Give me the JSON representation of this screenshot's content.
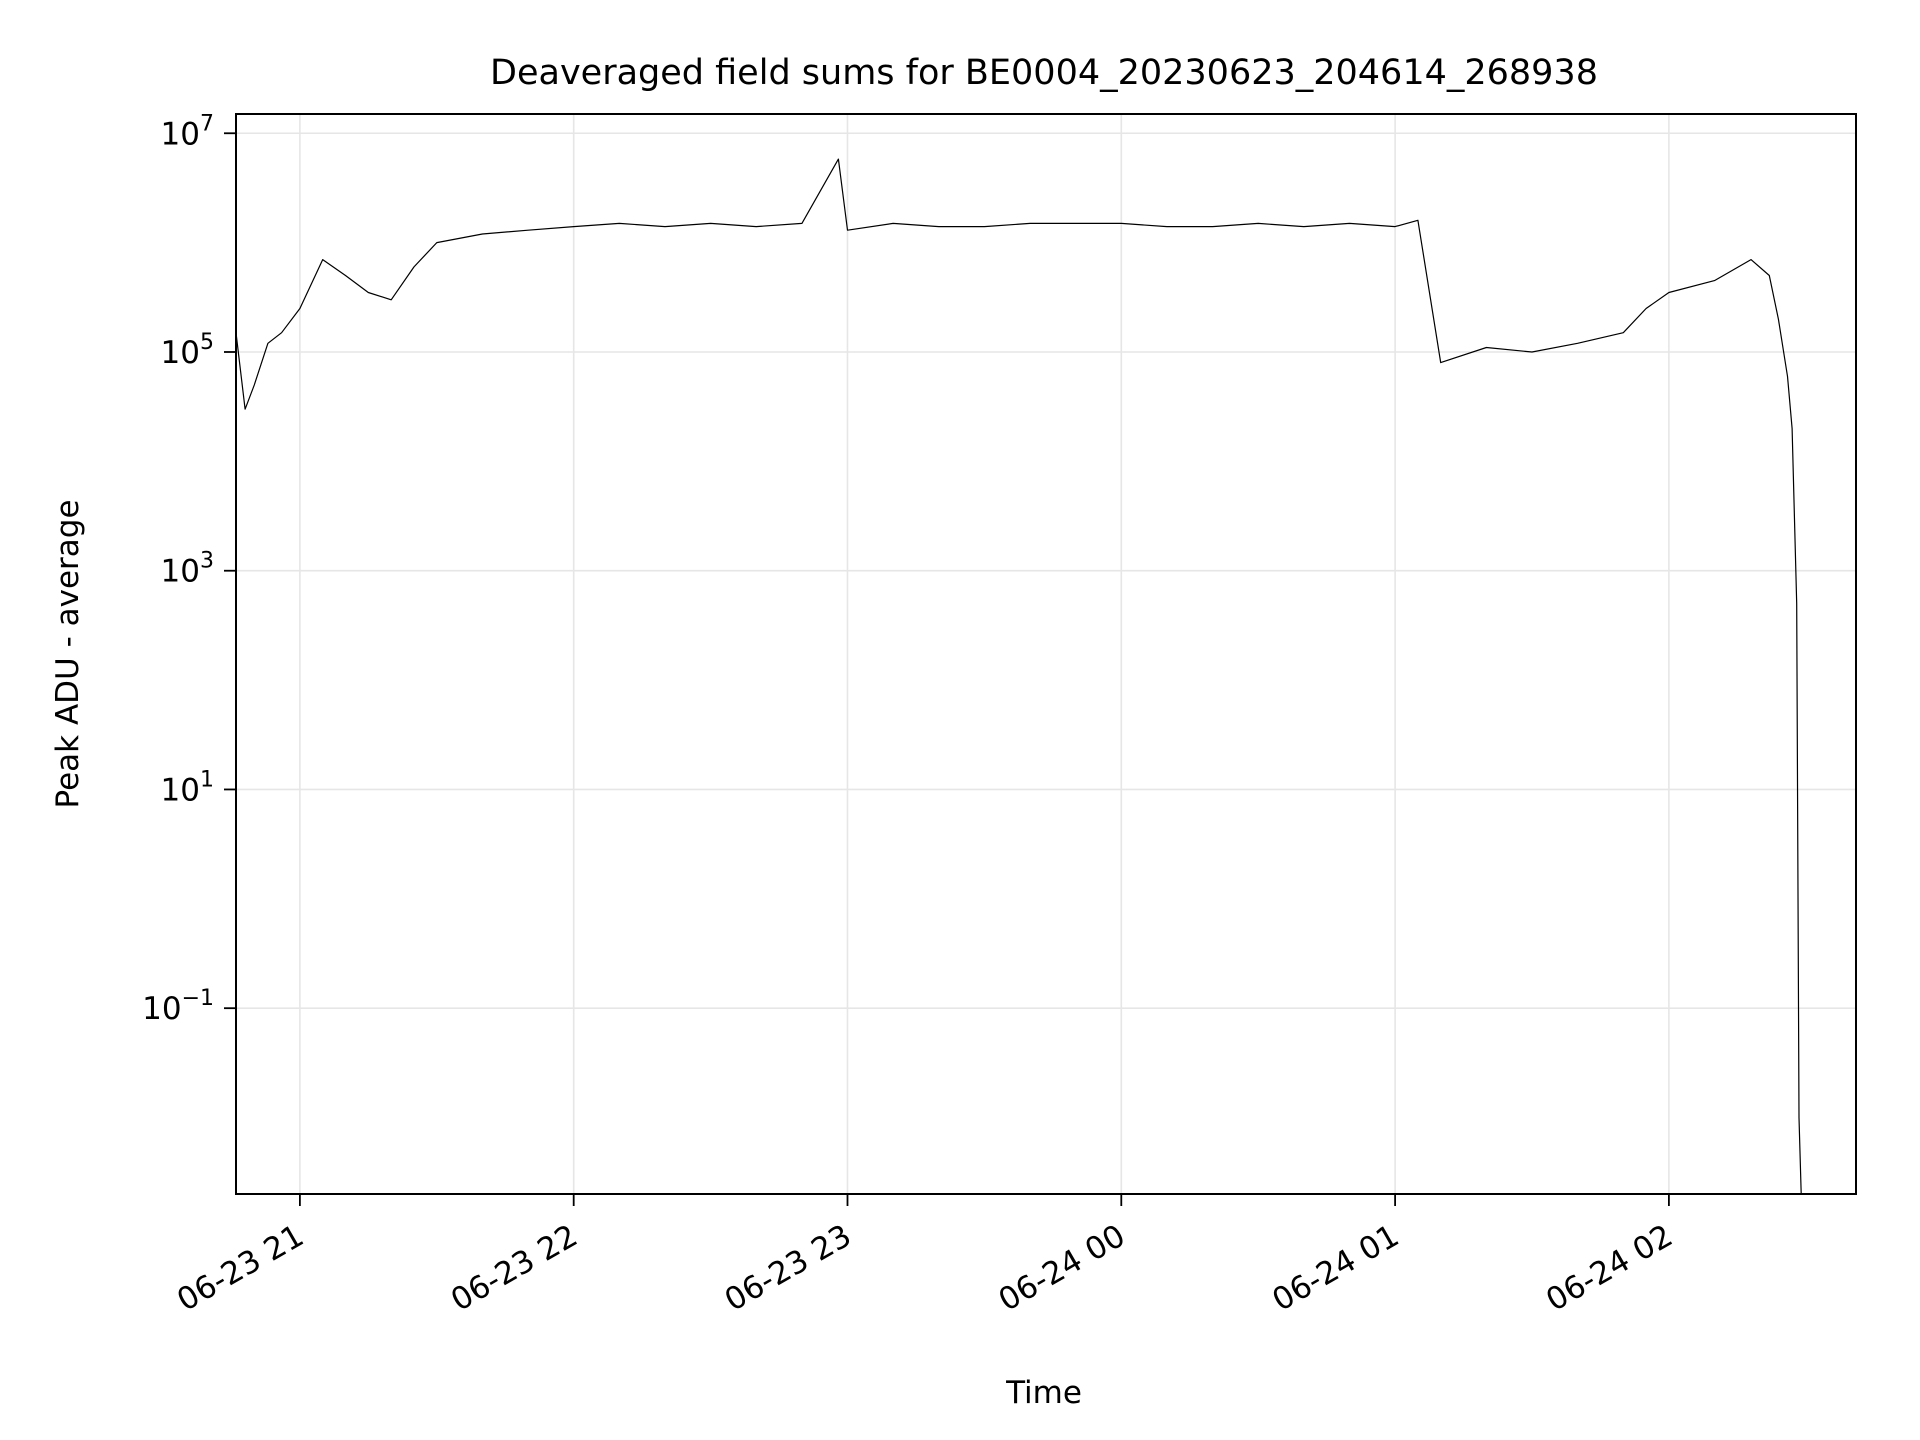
{
  "chart_data": {
    "type": "line",
    "title": "Deaveraged field sums for BE0004_20230623_204614_268938",
    "xlabel": "Time",
    "ylabel": "Peak ADU - average",
    "yscale": "log",
    "ylim": [
      0.002,
      15000000
    ],
    "xlim": [
      "2023-06-23 20:46",
      "2023-06-24 02:41"
    ],
    "grid": true,
    "line_color": "#000000",
    "x_ticks": [
      {
        "value": "2023-06-23 21:00",
        "label": "06-23 21"
      },
      {
        "value": "2023-06-23 22:00",
        "label": "06-23 22"
      },
      {
        "value": "2023-06-23 23:00",
        "label": "06-23 23"
      },
      {
        "value": "2023-06-24 00:00",
        "label": "06-24 00"
      },
      {
        "value": "2023-06-24 01:00",
        "label": "06-24 01"
      },
      {
        "value": "2023-06-24 02:00",
        "label": "06-24 02"
      }
    ],
    "y_ticks": [
      {
        "value": 10000000,
        "base": "10",
        "exp": "7"
      },
      {
        "value": 100000,
        "base": "10",
        "exp": "5"
      },
      {
        "value": 1000,
        "base": "10",
        "exp": "3"
      },
      {
        "value": 10,
        "base": "10",
        "exp": "1"
      },
      {
        "value": 0.1,
        "base": "10",
        "exp": "−1"
      }
    ],
    "series": [
      {
        "x": [
          "2023-06-23 20:46",
          "2023-06-23 20:48",
          "2023-06-23 20:50",
          "2023-06-23 20:53",
          "2023-06-23 20:56",
          "2023-06-23 21:00",
          "2023-06-23 21:05",
          "2023-06-23 21:10",
          "2023-06-23 21:15",
          "2023-06-23 21:20",
          "2023-06-23 21:25",
          "2023-06-23 21:30",
          "2023-06-23 21:40",
          "2023-06-23 21:50",
          "2023-06-23 22:00",
          "2023-06-23 22:10",
          "2023-06-23 22:20",
          "2023-06-23 22:30",
          "2023-06-23 22:40",
          "2023-06-23 22:50",
          "2023-06-23 22:58",
          "2023-06-23 23:00",
          "2023-06-23 23:10",
          "2023-06-23 23:20",
          "2023-06-23 23:30",
          "2023-06-23 23:40",
          "2023-06-23 23:50",
          "2023-06-24 00:00",
          "2023-06-24 00:10",
          "2023-06-24 00:20",
          "2023-06-24 00:30",
          "2023-06-24 00:40",
          "2023-06-24 00:50",
          "2023-06-24 01:00",
          "2023-06-24 01:05",
          "2023-06-24 01:10",
          "2023-06-24 01:20",
          "2023-06-24 01:30",
          "2023-06-24 01:40",
          "2023-06-24 01:50",
          "2023-06-24 01:55",
          "2023-06-24 02:00",
          "2023-06-24 02:10",
          "2023-06-24 02:18",
          "2023-06-24 02:22",
          "2023-06-24 02:24",
          "2023-06-24 02:26",
          "2023-06-24 02:27",
          "2023-06-24 02:28",
          "2023-06-24 02:28:30",
          "2023-06-24 02:29"
        ],
        "y": [
          150000,
          30000,
          50000,
          120000,
          150000,
          250000,
          700000,
          500000,
          350000,
          300000,
          600000,
          1000000,
          1200000,
          1300000,
          1400000,
          1500000,
          1400000,
          1500000,
          1400000,
          1500000,
          5800000,
          1300000,
          1500000,
          1400000,
          1400000,
          1500000,
          1500000,
          1500000,
          1400000,
          1400000,
          1500000,
          1400000,
          1500000,
          1400000,
          1600000,
          80000,
          110000,
          100000,
          120000,
          150000,
          250000,
          350000,
          450000,
          700000,
          500000,
          200000,
          60000,
          20000,
          500,
          0.01,
          0.002
        ]
      }
    ]
  }
}
